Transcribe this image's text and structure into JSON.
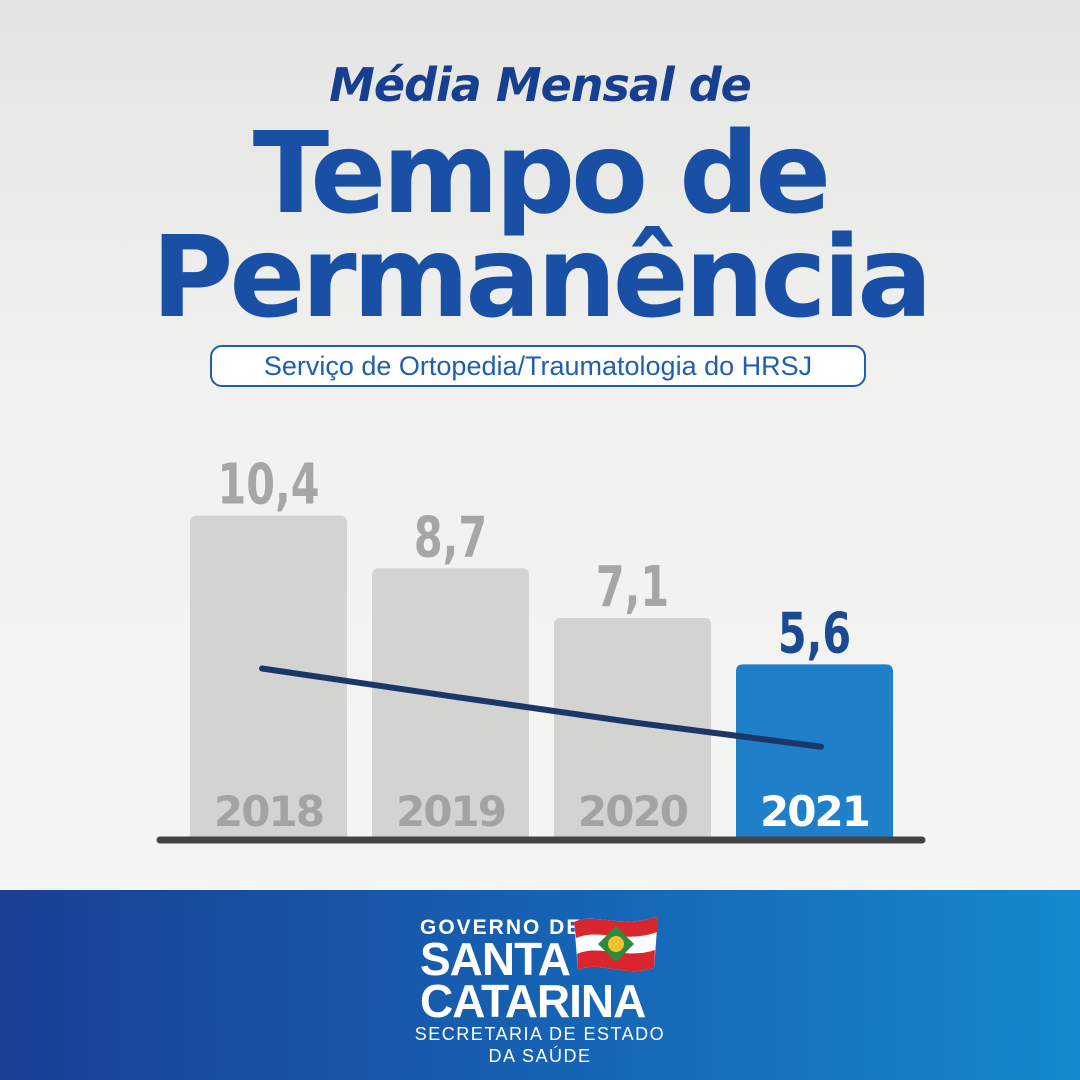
{
  "header": {
    "pre_title": "Média Mensal de",
    "title_line1": "Tempo de",
    "title_line2": "Permanência",
    "subtitle": "Serviço de Ortopedia/Traumatologia do HRSJ"
  },
  "chart_data": {
    "type": "bar",
    "categories": [
      "2018",
      "2019",
      "2020",
      "2021"
    ],
    "values": [
      10.4,
      8.7,
      7.1,
      5.6
    ],
    "value_labels": [
      "10,4",
      "8,7",
      "7,1",
      "5,6"
    ],
    "highlight_index": 3,
    "trend_line": true,
    "grid": false,
    "colors": {
      "bar": "#d3d3d2",
      "bar_highlight": "#1f7fc8",
      "value_label": "#a6a6a6",
      "value_label_highlight": "#1a4a94",
      "category_label": "#a3a3a3",
      "category_label_highlight": "#ffffff",
      "trend": "#1b3768",
      "baseline": "#444444"
    }
  },
  "footer": {
    "line1": "GOVERNO DE",
    "line2": "SANTA",
    "line3": "CATARINA",
    "line4": "SECRETARIA DE ESTADO",
    "line5": "DA SAÚDE"
  }
}
